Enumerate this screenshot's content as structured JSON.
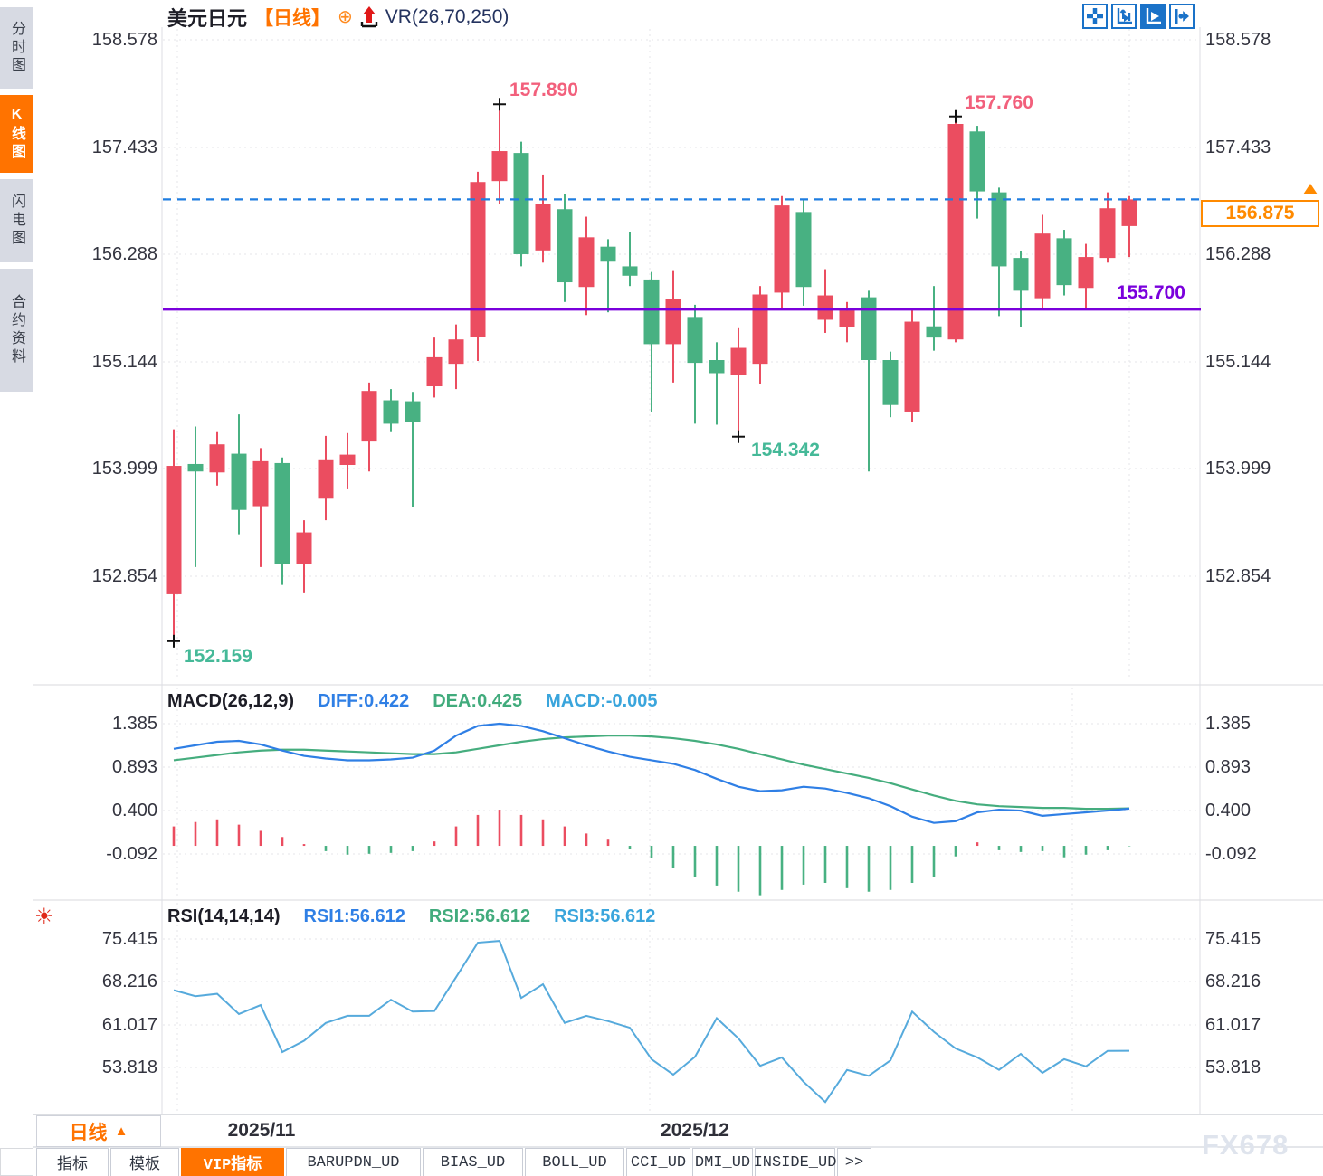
{
  "window": {
    "watermark": "FX678"
  },
  "title": {
    "symbol": "美元日元",
    "period": "【日线】",
    "indicator": "VR(26,70,250)"
  },
  "toolbar": {
    "icons": [
      {
        "name": "pan-move-icon"
      },
      {
        "name": "axis-zoom-icon"
      },
      {
        "name": "axis-pointer-icon",
        "active": true
      },
      {
        "name": "pan-right-icon"
      }
    ]
  },
  "sidebar": {
    "items": [
      {
        "label": "分时图",
        "active": false
      },
      {
        "label": "K线图",
        "active": true
      },
      {
        "label": "闪电图",
        "active": false
      },
      {
        "label": "合约资料",
        "active": false
      }
    ]
  },
  "price_axis": {
    "labels": [
      "158.578",
      "157.433",
      "156.288",
      "155.144",
      "153.999",
      "152.854"
    ]
  },
  "overlays": {
    "current_price": "156.875",
    "support_level": "155.700"
  },
  "annotations": {
    "peak1": "157.890",
    "peak2": "157.760",
    "trough1": "152.159",
    "trough2": "154.342"
  },
  "macd_panel": {
    "title": "MACD(26,12,9)",
    "diff_label": "DIFF:0.422",
    "dea_label": "DEA:0.425",
    "macd_label": "MACD:-0.005",
    "axis": [
      "1.385",
      "0.893",
      "0.400",
      "-0.092"
    ]
  },
  "rsi_panel": {
    "title": "RSI(14,14,14)",
    "rsi1_label": "RSI1:56.612",
    "rsi2_label": "RSI2:56.612",
    "rsi3_label": "RSI3:56.612",
    "axis": [
      "75.415",
      "68.216",
      "61.017",
      "53.818"
    ]
  },
  "xaxis": {
    "months": [
      "2025/11",
      "2025/12"
    ],
    "period_selector": "日线"
  },
  "tabs": [
    {
      "label": "指标",
      "active": false
    },
    {
      "label": "模板",
      "active": false
    },
    {
      "label": "VIP指标",
      "active": true
    },
    {
      "label": "BARUPDN_UD",
      "active": false
    },
    {
      "label": "BIAS_UD",
      "active": false
    },
    {
      "label": "BOLL_UD",
      "active": false
    },
    {
      "label": "CCI_UD",
      "active": false
    },
    {
      "label": "DMI_UD",
      "active": false
    },
    {
      "label": "INSIDE_UD",
      "active": false
    },
    {
      "label": ">>",
      "active": false
    }
  ],
  "colors": {
    "accent_orange": "#ff7300",
    "candle_up_red": "#eb4d60",
    "candle_down_green": "#48b182",
    "diff_blue": "#2f7fe5",
    "dea_green": "#45ad7e",
    "rsi_blue": "#56aadc",
    "dashed_blue": "#1f7de0",
    "support_purple": "#7a00dc",
    "grid_gray": "#e4e6ea",
    "marker_black": "#111111"
  },
  "chart_data": {
    "type": "candlestick",
    "title": "美元日元 日线",
    "ylabel": "price",
    "ylim": [
      152.16,
      158.578
    ],
    "yticks": [
      158.578,
      157.433,
      156.288,
      155.144,
      153.999,
      152.854
    ],
    "x_months": [
      {
        "label": "2025/11",
        "candle_index": 0
      },
      {
        "label": "2025/12",
        "candle_index": 22
      }
    ],
    "current_price": 156.875,
    "support": 155.7,
    "candles": [
      [
        152.66,
        154.42,
        152.16,
        154.03,
        "r"
      ],
      [
        154.05,
        154.45,
        152.95,
        153.97,
        "g"
      ],
      [
        153.96,
        154.4,
        153.82,
        154.26,
        "r"
      ],
      [
        154.16,
        154.58,
        153.3,
        153.56,
        "g"
      ],
      [
        153.6,
        154.22,
        152.95,
        154.08,
        "r"
      ],
      [
        154.06,
        154.12,
        152.76,
        152.98,
        "g"
      ],
      [
        152.98,
        153.45,
        152.68,
        153.32,
        "r"
      ],
      [
        153.68,
        154.35,
        153.45,
        154.1,
        "r"
      ],
      [
        154.04,
        154.38,
        153.78,
        154.15,
        "r"
      ],
      [
        154.29,
        154.92,
        153.97,
        154.83,
        "r"
      ],
      [
        154.73,
        154.85,
        154.4,
        154.48,
        "g"
      ],
      [
        154.72,
        154.82,
        153.59,
        154.5,
        "g"
      ],
      [
        154.88,
        155.4,
        154.76,
        155.19,
        "r"
      ],
      [
        155.12,
        155.54,
        154.85,
        155.38,
        "r"
      ],
      [
        155.41,
        157.17,
        155.15,
        157.06,
        "r"
      ],
      [
        157.07,
        157.89,
        156.83,
        157.39,
        "r"
      ],
      [
        157.37,
        157.49,
        156.16,
        156.29,
        "g"
      ],
      [
        156.33,
        157.14,
        156.2,
        156.83,
        "r"
      ],
      [
        156.77,
        156.93,
        155.78,
        155.99,
        "g"
      ],
      [
        155.94,
        156.69,
        155.64,
        156.47,
        "r"
      ],
      [
        156.37,
        156.45,
        155.67,
        156.21,
        "g"
      ],
      [
        156.16,
        156.53,
        155.95,
        156.06,
        "g"
      ],
      [
        156.02,
        156.1,
        154.61,
        155.33,
        "g"
      ],
      [
        155.33,
        156.11,
        154.92,
        155.81,
        "r"
      ],
      [
        155.62,
        155.75,
        154.48,
        155.13,
        "g"
      ],
      [
        155.16,
        155.35,
        154.47,
        155.02,
        "g"
      ],
      [
        155.0,
        155.5,
        154.342,
        155.29,
        "r"
      ],
      [
        155.12,
        155.95,
        154.9,
        155.86,
        "r"
      ],
      [
        155.88,
        156.91,
        155.71,
        156.81,
        "r"
      ],
      [
        156.74,
        156.88,
        155.74,
        155.94,
        "g"
      ],
      [
        155.59,
        156.13,
        155.45,
        155.85,
        "r"
      ],
      [
        155.51,
        155.78,
        155.35,
        155.69,
        "r"
      ],
      [
        155.83,
        155.9,
        153.97,
        155.16,
        "g"
      ],
      [
        155.16,
        155.25,
        154.55,
        154.68,
        "g"
      ],
      [
        154.61,
        155.69,
        154.5,
        155.57,
        "r"
      ],
      [
        155.52,
        155.95,
        155.26,
        155.4,
        "g"
      ],
      [
        155.38,
        157.76,
        155.35,
        157.68,
        "r"
      ],
      [
        157.6,
        157.66,
        156.67,
        156.96,
        "g"
      ],
      [
        156.95,
        157.0,
        155.63,
        156.16,
        "g"
      ],
      [
        156.25,
        156.32,
        155.51,
        155.9,
        "g"
      ],
      [
        155.82,
        156.71,
        155.7,
        156.51,
        "r"
      ],
      [
        156.46,
        156.55,
        155.85,
        155.96,
        "g"
      ],
      [
        155.93,
        156.4,
        155.7,
        156.26,
        "r"
      ],
      [
        156.25,
        156.95,
        156.2,
        156.78,
        "r"
      ],
      [
        156.59,
        156.91,
        156.26,
        156.875,
        "r"
      ]
    ],
    "markers": [
      {
        "index": 0,
        "at": "low",
        "value": 152.159
      },
      {
        "index": 15,
        "at": "high",
        "value": 157.89
      },
      {
        "index": 26,
        "at": "low",
        "value": 154.342
      },
      {
        "index": 36,
        "at": "high",
        "value": 157.76
      }
    ],
    "macd": {
      "params": "26,12,9",
      "diff_last": 0.422,
      "dea_last": 0.425,
      "macd_last": -0.005,
      "yticks": [
        1.385,
        0.893,
        0.4,
        -0.092
      ],
      "diff": [
        1.1,
        1.14,
        1.18,
        1.19,
        1.15,
        1.08,
        1.02,
        0.99,
        0.97,
        0.97,
        0.98,
        1.0,
        1.08,
        1.25,
        1.36,
        1.385,
        1.36,
        1.3,
        1.22,
        1.14,
        1.07,
        1.01,
        0.97,
        0.93,
        0.86,
        0.76,
        0.67,
        0.62,
        0.63,
        0.67,
        0.65,
        0.6,
        0.54,
        0.45,
        0.33,
        0.26,
        0.28,
        0.38,
        0.41,
        0.4,
        0.34,
        0.36,
        0.38,
        0.4,
        0.422
      ],
      "dea": [
        0.97,
        1.0,
        1.03,
        1.06,
        1.08,
        1.09,
        1.09,
        1.08,
        1.07,
        1.06,
        1.05,
        1.04,
        1.04,
        1.06,
        1.1,
        1.14,
        1.18,
        1.21,
        1.23,
        1.24,
        1.25,
        1.25,
        1.24,
        1.22,
        1.19,
        1.15,
        1.1,
        1.04,
        0.98,
        0.92,
        0.87,
        0.82,
        0.77,
        0.71,
        0.64,
        0.57,
        0.51,
        0.47,
        0.45,
        0.44,
        0.43,
        0.43,
        0.42,
        0.42,
        0.425
      ],
      "hist": [
        0.22,
        0.27,
        0.3,
        0.24,
        0.17,
        0.1,
        0.02,
        -0.06,
        -0.1,
        -0.09,
        -0.08,
        -0.06,
        0.05,
        0.22,
        0.35,
        0.41,
        0.35,
        0.3,
        0.22,
        0.14,
        0.07,
        -0.04,
        -0.14,
        -0.25,
        -0.35,
        -0.45,
        -0.52,
        -0.56,
        -0.5,
        -0.44,
        -0.42,
        -0.48,
        -0.52,
        -0.5,
        -0.42,
        -0.35,
        -0.12,
        0.04,
        -0.05,
        -0.07,
        -0.06,
        -0.13,
        -0.1,
        -0.05,
        -0.005
      ]
    },
    "rsi": {
      "params": "14,14,14",
      "rsi_last": 56.612,
      "yticks": [
        75.415,
        68.216,
        61.017,
        53.818
      ],
      "values": [
        66.8,
        65.8,
        66.2,
        62.8,
        64.3,
        56.4,
        58.3,
        61.3,
        62.5,
        62.5,
        65.2,
        63.2,
        63.3,
        69.0,
        74.8,
        75.1,
        65.5,
        67.8,
        61.3,
        62.5,
        61.6,
        60.5,
        55.2,
        52.6,
        55.6,
        62.1,
        58.7,
        54.1,
        55.5,
        51.4,
        48.0,
        53.4,
        52.4,
        55.0,
        63.2,
        59.8,
        57.0,
        55.5,
        53.4,
        56.1,
        52.9,
        55.2,
        54.0,
        56.6,
        56.612
      ]
    }
  }
}
